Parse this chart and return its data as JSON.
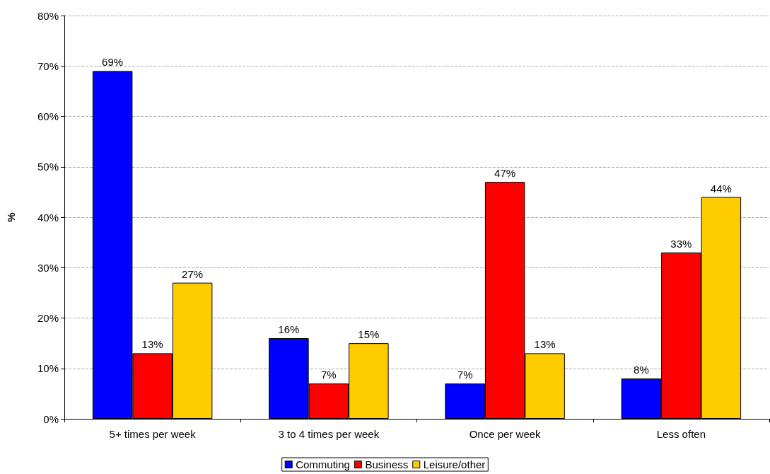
{
  "chart_data": {
    "type": "bar",
    "ylabel": "%",
    "categories": [
      "5+ times per week",
      "3 to 4 times per week",
      "Once per week",
      "Less often"
    ],
    "series": [
      {
        "name": "Commuting",
        "color": "#0000ff",
        "values": [
          69,
          16,
          7,
          8
        ],
        "value_labels": [
          "69%",
          "16%",
          "7%",
          "8%"
        ]
      },
      {
        "name": "Business",
        "color": "#ff0000",
        "values": [
          13,
          7,
          47,
          33
        ],
        "value_labels": [
          "13%",
          "7%",
          "47%",
          "33%"
        ]
      },
      {
        "name": "Leisure/other",
        "color": "#ffcc00",
        "values": [
          27,
          15,
          13,
          44
        ],
        "value_labels": [
          "27%",
          "15%",
          "13%",
          "44%"
        ]
      }
    ],
    "ylim": [
      0,
      80
    ],
    "yticks": [
      {
        "value": 0,
        "label": "0%"
      },
      {
        "value": 10,
        "label": "10%"
      },
      {
        "value": 20,
        "label": "20%"
      },
      {
        "value": 30,
        "label": "30%"
      },
      {
        "value": 40,
        "label": "40%"
      },
      {
        "value": 50,
        "label": "50%"
      },
      {
        "value": 60,
        "label": "60%"
      },
      {
        "value": 70,
        "label": "70%"
      },
      {
        "value": 80,
        "label": "80%"
      }
    ],
    "grid": "y",
    "legend": "bottom"
  }
}
